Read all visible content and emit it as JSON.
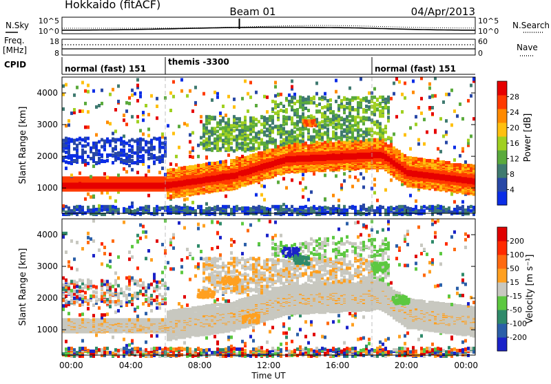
{
  "header": {
    "station": "Hokkaido (fitACF)",
    "beam": "Beam 01",
    "date": "04/Apr/2013"
  },
  "status_panels": {
    "nsky_label": "N.Sky",
    "nsky_ticks": [
      "10^5",
      "10^0"
    ],
    "nsearch_label": "N.Search",
    "nsearch_ticks": [
      "10^5",
      "10^0"
    ],
    "freq_label_1": "Freq.",
    "freq_label_2": "[MHz]",
    "freq_ticks": [
      "18",
      "8"
    ],
    "nave_label": "Nave",
    "nave_ticks": [
      "60",
      "0"
    ],
    "cpid_label": "CPID",
    "cpid_segments": [
      {
        "label": "normal (fast) 151",
        "start_hour": 0
      },
      {
        "label": "themis -3300",
        "start_hour": 6
      },
      {
        "label": "normal (fast) 151",
        "start_hour": 18
      }
    ]
  },
  "chart_data": [
    {
      "type": "heatmap",
      "panel": "power",
      "ylabel": "Slant Range [km]",
      "ylim": [
        200,
        4500
      ],
      "yticks": [
        "1000",
        "2000",
        "3000",
        "4000"
      ],
      "colorbar_label": "Power [dB]",
      "colorbar_ticks": [
        "28",
        "24",
        "20",
        "16",
        "12",
        "8",
        "4"
      ],
      "colors": [
        "#0b2de6",
        "#2848a6",
        "#3f7a70",
        "#5aaa3c",
        "#a0d020",
        "#ffc010",
        "#ff8a00",
        "#ff3a00",
        "#e60000"
      ]
    },
    {
      "type": "heatmap",
      "panel": "velocity",
      "ylabel": "Slant Range [km]",
      "ylim": [
        200,
        4500
      ],
      "yticks": [
        "1000",
        "2000",
        "3000",
        "4000"
      ],
      "colorbar_label": "Velocity [m s⁻¹]",
      "colorbar_ticks": [
        "200",
        "100",
        "50",
        "15",
        "-15",
        "-50",
        "-100",
        "-200"
      ],
      "colors": [
        "#1a22c8",
        "#2b5fa8",
        "#2f8a6a",
        "#5cc840",
        "#c8c8c0",
        "#ffa020",
        "#ff6a10",
        "#ff2a00",
        "#e00000"
      ]
    }
  ],
  "x_axis": {
    "label": "Time UT",
    "ticks": [
      "00:00",
      "04:00",
      "08:00",
      "12:00",
      "16:00",
      "20:00",
      "00:00"
    ]
  }
}
